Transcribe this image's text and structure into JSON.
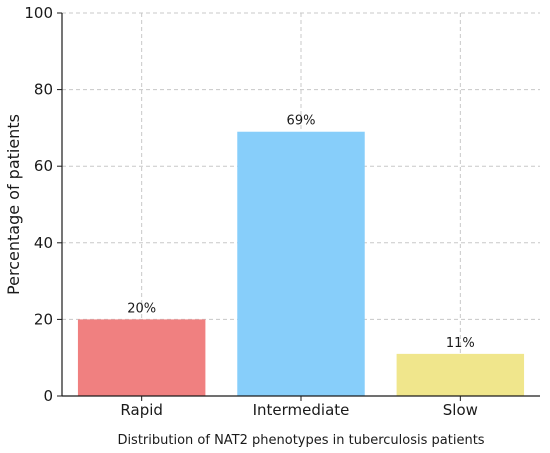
{
  "chart_data": {
    "type": "bar",
    "title": "",
    "caption": "Distribution of NAT2 phenotypes in tuberculosis patients",
    "xlabel": "",
    "ylabel": "Percentage of patients",
    "ylim": [
      0,
      100
    ],
    "yticks": [
      0,
      20,
      40,
      60,
      80,
      100
    ],
    "grid": true,
    "categories": [
      "Rapid",
      "Intermediate",
      "Slow"
    ],
    "values": [
      20,
      69,
      11
    ],
    "data_labels": [
      "20%",
      "69%",
      "11%"
    ],
    "colors": [
      "#f08080",
      "#87cefa",
      "#f0e68c"
    ]
  }
}
